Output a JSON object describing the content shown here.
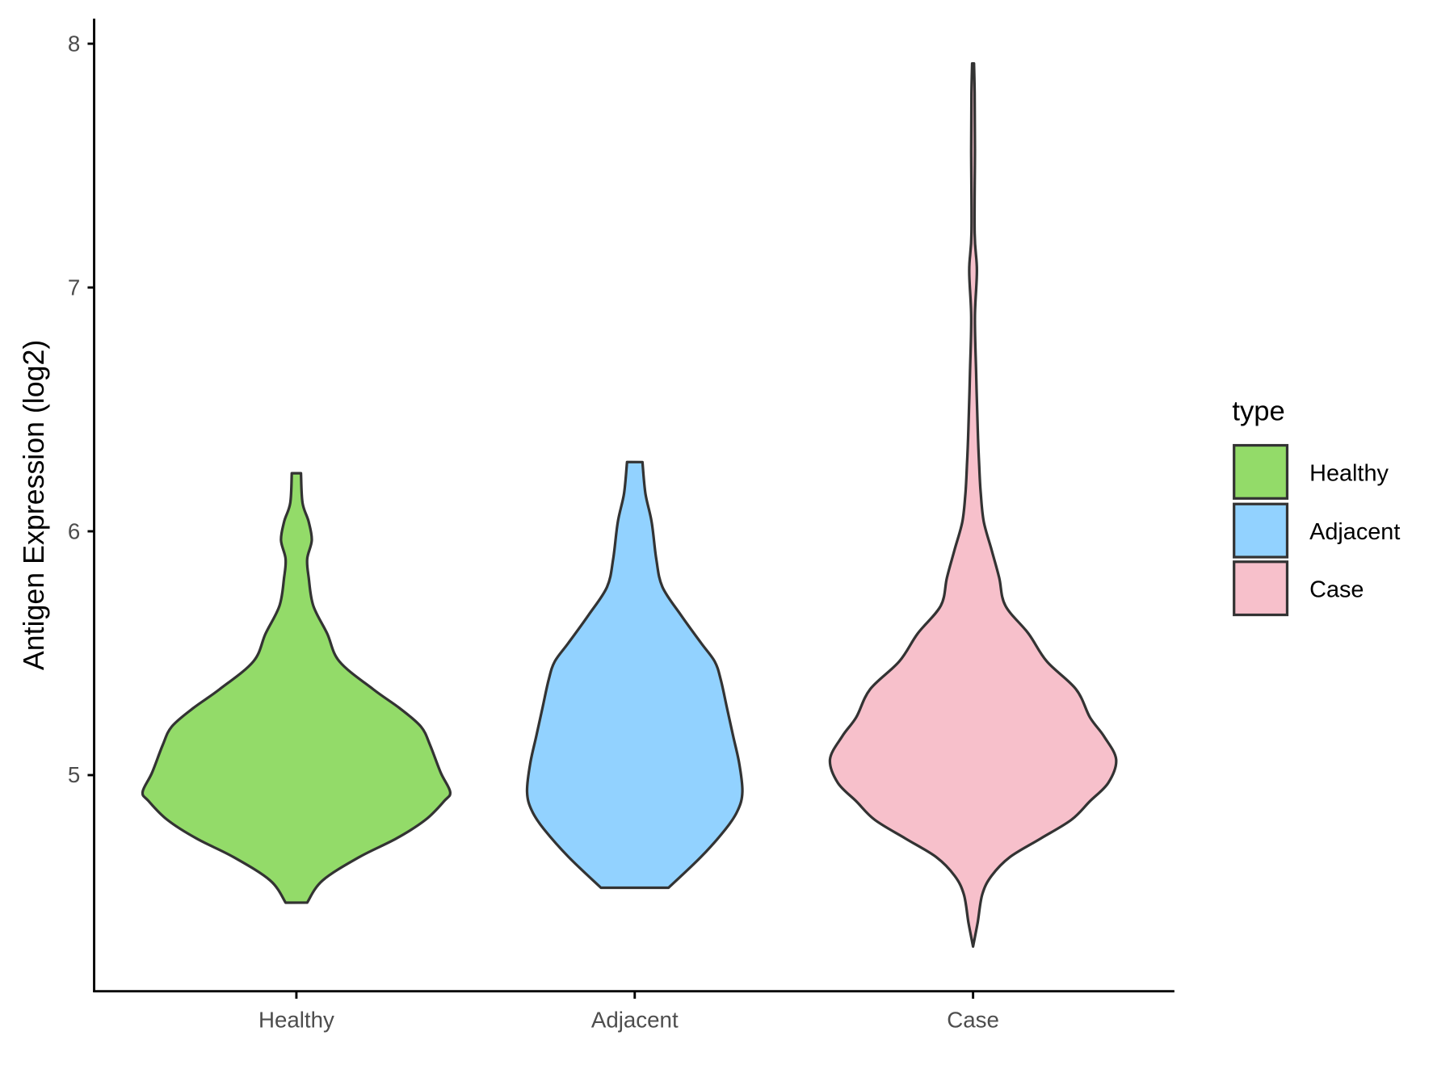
{
  "chart_data": {
    "type": "violin",
    "title": "",
    "xlabel": "",
    "ylabel": "Antigen Expression (log2)",
    "categories": [
      "Healthy",
      "Adjacent",
      "Case"
    ],
    "ylim": [
      4.17,
      8.1
    ],
    "yticks": [
      5,
      6,
      7,
      8
    ],
    "ytick_labels": [
      "5",
      "6",
      "7",
      "8"
    ],
    "grid": false,
    "legend": {
      "title": "type",
      "position": "right",
      "entries": [
        "Healthy",
        "Adjacent",
        "Case"
      ]
    },
    "colors": {
      "Healthy": "#93DB69",
      "Adjacent": "#92D2FF",
      "Case": "#F7C0CB",
      "outline": "#333333"
    },
    "series": [
      {
        "name": "Healthy",
        "min": 4.48,
        "max": 6.24,
        "profile_values": [
          4.477,
          4.568,
          4.664,
          4.74,
          4.817,
          4.893,
          4.931,
          5.008,
          5.122,
          5.199,
          5.275,
          5.352,
          5.466,
          5.581,
          5.695,
          5.81,
          5.887,
          5.963,
          6.039,
          6.116,
          6.238
        ],
        "relative_density": [
          0.07,
          0.17,
          0.41,
          0.65,
          0.84,
          0.96,
          1.0,
          0.94,
          0.87,
          0.81,
          0.67,
          0.5,
          0.28,
          0.2,
          0.11,
          0.08,
          0.07,
          0.1,
          0.08,
          0.04,
          0.03
        ]
      },
      {
        "name": "Adjacent",
        "min": 4.54,
        "max": 6.28,
        "profile_values": [
          4.538,
          4.664,
          4.778,
          4.855,
          4.931,
          5.046,
          5.16,
          5.275,
          5.39,
          5.466,
          5.543,
          5.657,
          5.772,
          5.887,
          6.039,
          6.154,
          6.284
        ],
        "relative_density": [
          0.22,
          0.43,
          0.59,
          0.67,
          0.7,
          0.68,
          0.64,
          0.6,
          0.56,
          0.52,
          0.43,
          0.3,
          0.18,
          0.14,
          0.11,
          0.07,
          0.05
        ]
      },
      {
        "name": "Case",
        "min": 4.3,
        "max": 7.92,
        "profile_values": [
          4.297,
          4.396,
          4.511,
          4.587,
          4.664,
          4.74,
          4.817,
          4.893,
          4.969,
          5.065,
          5.16,
          5.237,
          5.352,
          5.466,
          5.581,
          5.695,
          5.81,
          5.925,
          6.039,
          6.154,
          6.269,
          6.421,
          6.651,
          6.88,
          7.071,
          7.224,
          7.568,
          7.797,
          7.919
        ],
        "relative_density": [
          0,
          0.03,
          0.06,
          0.12,
          0.24,
          0.44,
          0.64,
          0.76,
          0.88,
          0.93,
          0.85,
          0.76,
          0.67,
          0.48,
          0.36,
          0.21,
          0.17,
          0.12,
          0.07,
          0.05,
          0.04,
          0.03,
          0.02,
          0.012,
          0.025,
          0.01,
          0.012,
          0.01,
          0.006
        ]
      }
    ]
  }
}
